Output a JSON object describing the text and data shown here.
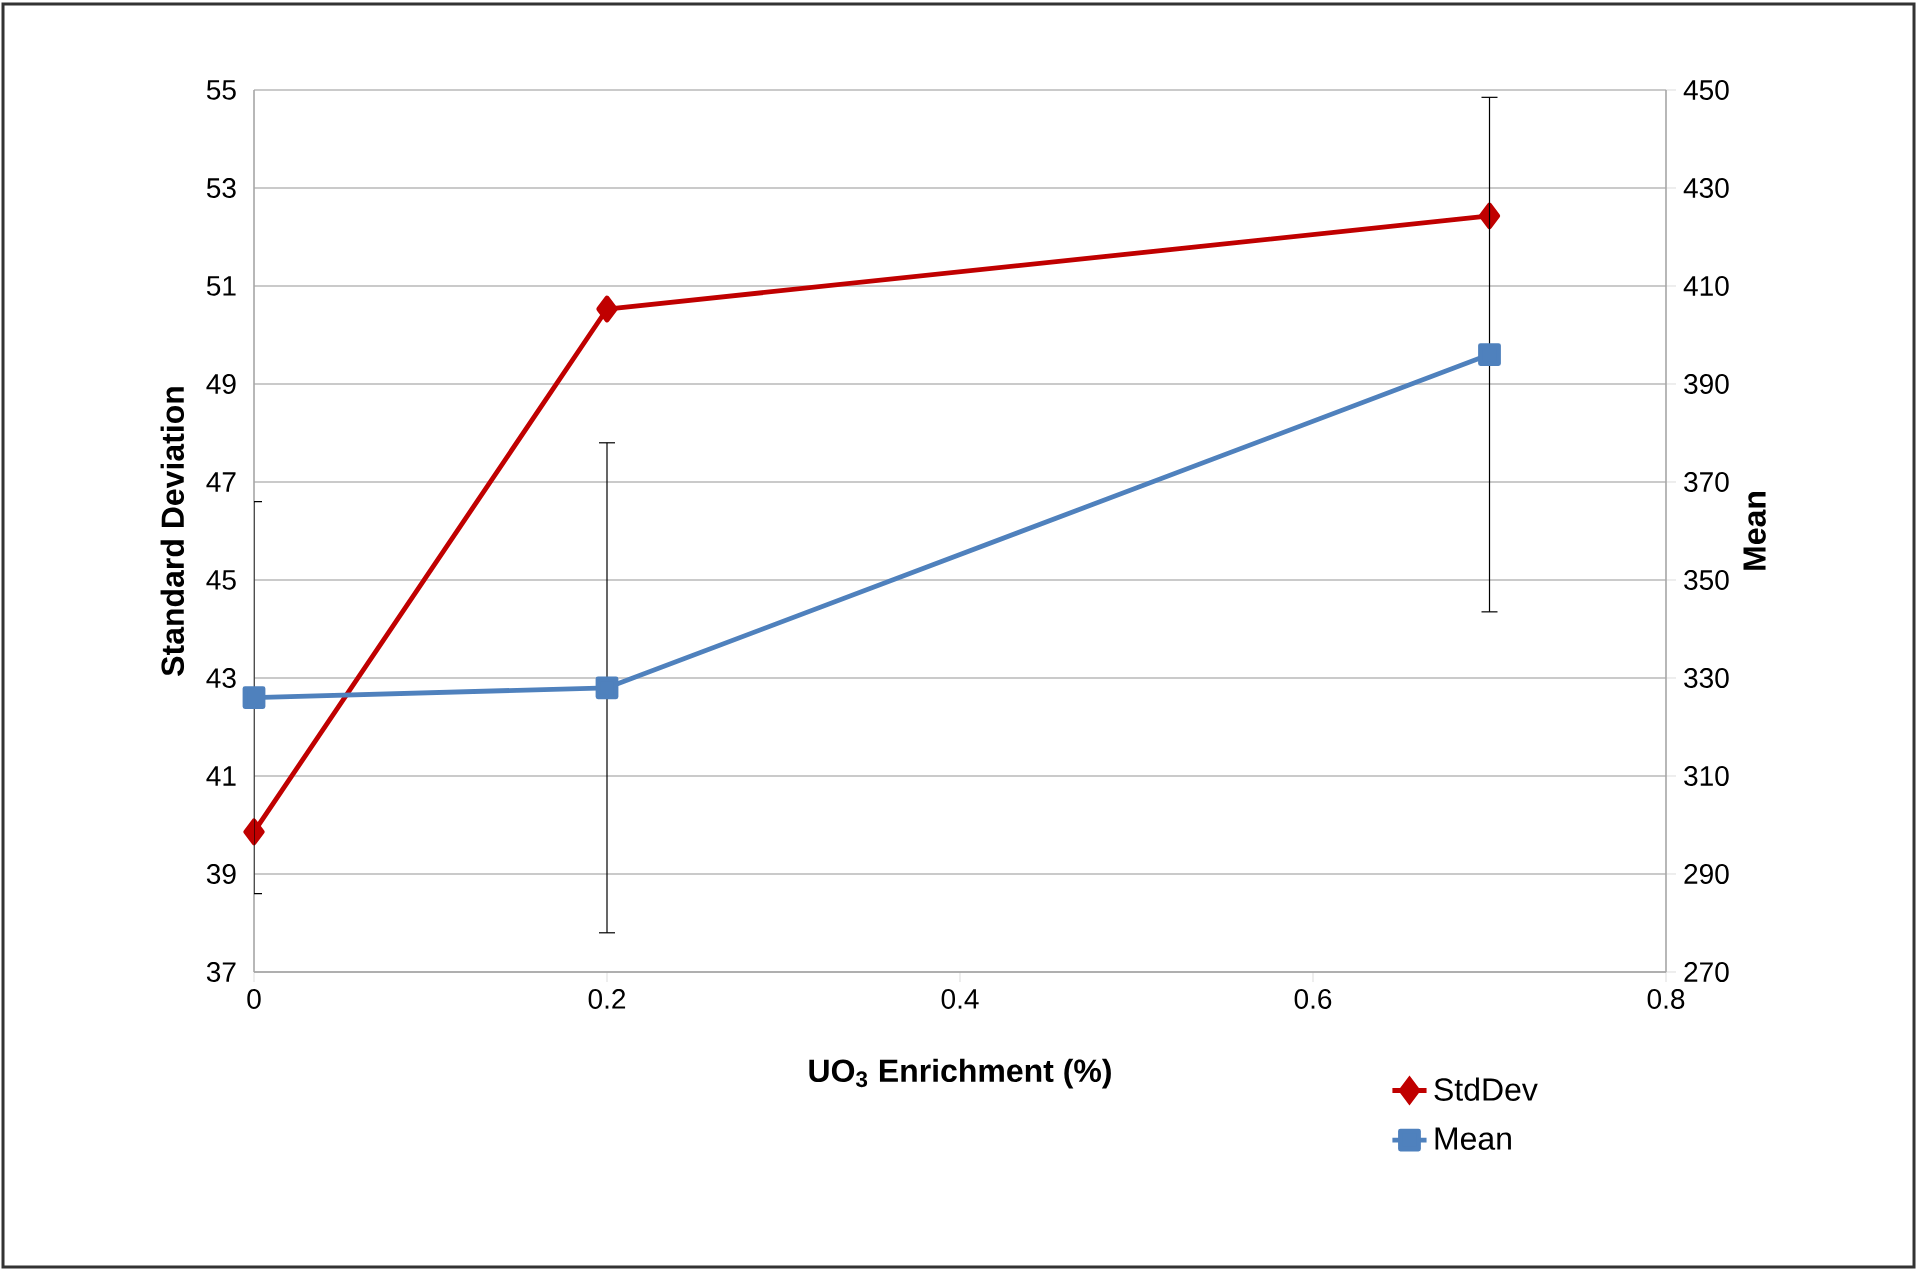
{
  "chart_data": {
    "type": "line",
    "xlabel": "UO$_{3}$ Enrichment (%)",
    "ylabel": "Standard Deviation",
    "y2label": "Mean",
    "x": [
      0,
      0.2,
      0.7
    ],
    "xlim": [
      0,
      0.8
    ],
    "xticks": [
      0,
      0.2,
      0.4,
      0.6,
      0.8
    ],
    "ylim": [
      37,
      55
    ],
    "yticks": [
      37,
      39,
      41,
      43,
      45,
      47,
      49,
      51,
      53,
      55
    ],
    "y2lim": [
      270,
      450
    ],
    "y2ticks": [
      270,
      290,
      310,
      330,
      350,
      370,
      390,
      410,
      430,
      450
    ],
    "grid": "y",
    "legend": "bottom right",
    "line_style": "solid",
    "series": [
      {
        "name": "StdDev",
        "color": "#c00000",
        "marker": "diamond",
        "values": [
          39.86,
          50.53,
          52.43
        ]
      },
      {
        "name": "Mean",
        "color": "#4f81bd",
        "marker": "square",
        "axis": "y2",
        "values": [
          326,
          328,
          396
        ],
        "errors": [
          40,
          50,
          52.5
        ]
      }
    ]
  }
}
